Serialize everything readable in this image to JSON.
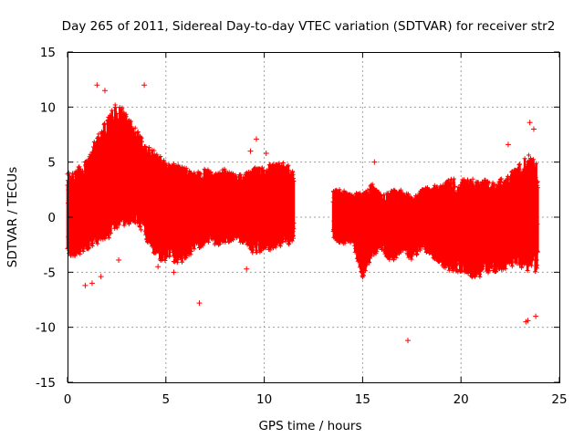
{
  "chart_data": {
    "type": "scatter",
    "title": "Day 265 of 2011, Sidereal Day-to-day VTEC variation (SDTVAR) for receiver str2",
    "xlabel": "GPS time / hours",
    "ylabel": "SDTVAR / TECUs",
    "xlim": [
      0,
      25
    ],
    "ylim": [
      -15,
      15
    ],
    "xticks": [
      0,
      5,
      10,
      15,
      20,
      25
    ],
    "xtick_labels": [
      "0",
      "5",
      "10",
      "15",
      "20",
      "25"
    ],
    "yticks": [
      -15,
      -10,
      -5,
      0,
      5,
      10,
      15
    ],
    "ytick_labels": [
      "-15",
      "-10",
      "-5",
      "0",
      "5",
      "10",
      "15"
    ],
    "grid": true,
    "marker": "plus",
    "color": "#ff0000",
    "segments": [
      {
        "name": "dense-segment-1",
        "x_range": [
          0.0,
          11.5
        ],
        "envelope": [
          {
            "x": 0.0,
            "low": -3.5,
            "high": 4.0
          },
          {
            "x": 0.5,
            "low": -3.5,
            "high": 4.5
          },
          {
            "x": 1.0,
            "low": -3.0,
            "high": 5.5
          },
          {
            "x": 1.5,
            "low": -2.5,
            "high": 7.5
          },
          {
            "x": 2.0,
            "low": -2.0,
            "high": 9.0
          },
          {
            "x": 2.5,
            "low": -1.5,
            "high": 10.5
          },
          {
            "x": 3.0,
            "low": -1.0,
            "high": 9.5
          },
          {
            "x": 3.5,
            "low": -0.5,
            "high": 8.0
          },
          {
            "x": 4.0,
            "low": -2.0,
            "high": 6.5
          },
          {
            "x": 4.5,
            "low": -4.0,
            "high": 6.0
          },
          {
            "x": 5.0,
            "low": -4.0,
            "high": 5.0
          },
          {
            "x": 5.5,
            "low": -4.5,
            "high": 5.0
          },
          {
            "x": 6.0,
            "low": -4.0,
            "high": 4.5
          },
          {
            "x": 6.5,
            "low": -3.0,
            "high": 4.0
          },
          {
            "x": 7.0,
            "low": -2.5,
            "high": 4.5
          },
          {
            "x": 7.5,
            "low": -2.5,
            "high": 4.0
          },
          {
            "x": 8.0,
            "low": -2.5,
            "high": 4.5
          },
          {
            "x": 8.5,
            "low": -2.0,
            "high": 4.0
          },
          {
            "x": 9.0,
            "low": -2.5,
            "high": 4.0
          },
          {
            "x": 9.5,
            "low": -3.5,
            "high": 4.5
          },
          {
            "x": 10.0,
            "low": -3.0,
            "high": 4.5
          },
          {
            "x": 10.5,
            "low": -3.0,
            "high": 5.0
          },
          {
            "x": 11.0,
            "low": -2.5,
            "high": 5.0
          },
          {
            "x": 11.5,
            "low": -2.5,
            "high": 4.5
          }
        ]
      },
      {
        "name": "dense-segment-2",
        "x_range": [
          13.5,
          23.9
        ],
        "envelope": [
          {
            "x": 13.5,
            "low": -2.0,
            "high": 2.5
          },
          {
            "x": 14.0,
            "low": -2.5,
            "high": 2.5
          },
          {
            "x": 14.5,
            "low": -2.5,
            "high": 2.0
          },
          {
            "x": 15.0,
            "low": -5.5,
            "high": 2.5
          },
          {
            "x": 15.5,
            "low": -3.5,
            "high": 3.0
          },
          {
            "x": 16.0,
            "low": -3.0,
            "high": 2.0
          },
          {
            "x": 16.5,
            "low": -4.5,
            "high": 2.5
          },
          {
            "x": 17.0,
            "low": -3.0,
            "high": 2.5
          },
          {
            "x": 17.5,
            "low": -4.0,
            "high": 2.0
          },
          {
            "x": 18.0,
            "low": -3.0,
            "high": 2.5
          },
          {
            "x": 18.5,
            "low": -3.5,
            "high": 3.0
          },
          {
            "x": 19.0,
            "low": -4.5,
            "high": 3.0
          },
          {
            "x": 19.5,
            "low": -5.0,
            "high": 3.5
          },
          {
            "x": 20.0,
            "low": -5.0,
            "high": 3.5
          },
          {
            "x": 20.5,
            "low": -5.5,
            "high": 3.5
          },
          {
            "x": 21.0,
            "low": -5.5,
            "high": 3.5
          },
          {
            "x": 21.5,
            "low": -5.0,
            "high": 3.5
          },
          {
            "x": 22.0,
            "low": -5.0,
            "high": 3.5
          },
          {
            "x": 22.5,
            "low": -4.5,
            "high": 4.0
          },
          {
            "x": 23.0,
            "low": -4.5,
            "high": 5.0
          },
          {
            "x": 23.5,
            "low": -5.0,
            "high": 6.0
          },
          {
            "x": 23.9,
            "low": -5.0,
            "high": 5.0
          }
        ]
      }
    ],
    "outliers": [
      {
        "x": 1.5,
        "y": 12.0
      },
      {
        "x": 1.9,
        "y": 11.5
      },
      {
        "x": 3.9,
        "y": 12.0
      },
      {
        "x": 0.9,
        "y": -6.2
      },
      {
        "x": 1.25,
        "y": -6.0
      },
      {
        "x": 1.7,
        "y": -5.4
      },
      {
        "x": 2.6,
        "y": -3.9
      },
      {
        "x": 4.6,
        "y": -4.5
      },
      {
        "x": 5.4,
        "y": -5.0
      },
      {
        "x": 6.7,
        "y": -7.8
      },
      {
        "x": 9.1,
        "y": -4.7
      },
      {
        "x": 9.3,
        "y": 6.0
      },
      {
        "x": 9.6,
        "y": 7.1
      },
      {
        "x": 10.1,
        "y": 5.8
      },
      {
        "x": 15.6,
        "y": 5.0
      },
      {
        "x": 17.3,
        "y": -11.2
      },
      {
        "x": 22.4,
        "y": 6.6
      },
      {
        "x": 23.3,
        "y": -9.5
      },
      {
        "x": 23.4,
        "y": -9.4
      },
      {
        "x": 23.8,
        "y": -9.0
      },
      {
        "x": 23.5,
        "y": 8.6
      },
      {
        "x": 23.7,
        "y": 8.0
      }
    ]
  }
}
